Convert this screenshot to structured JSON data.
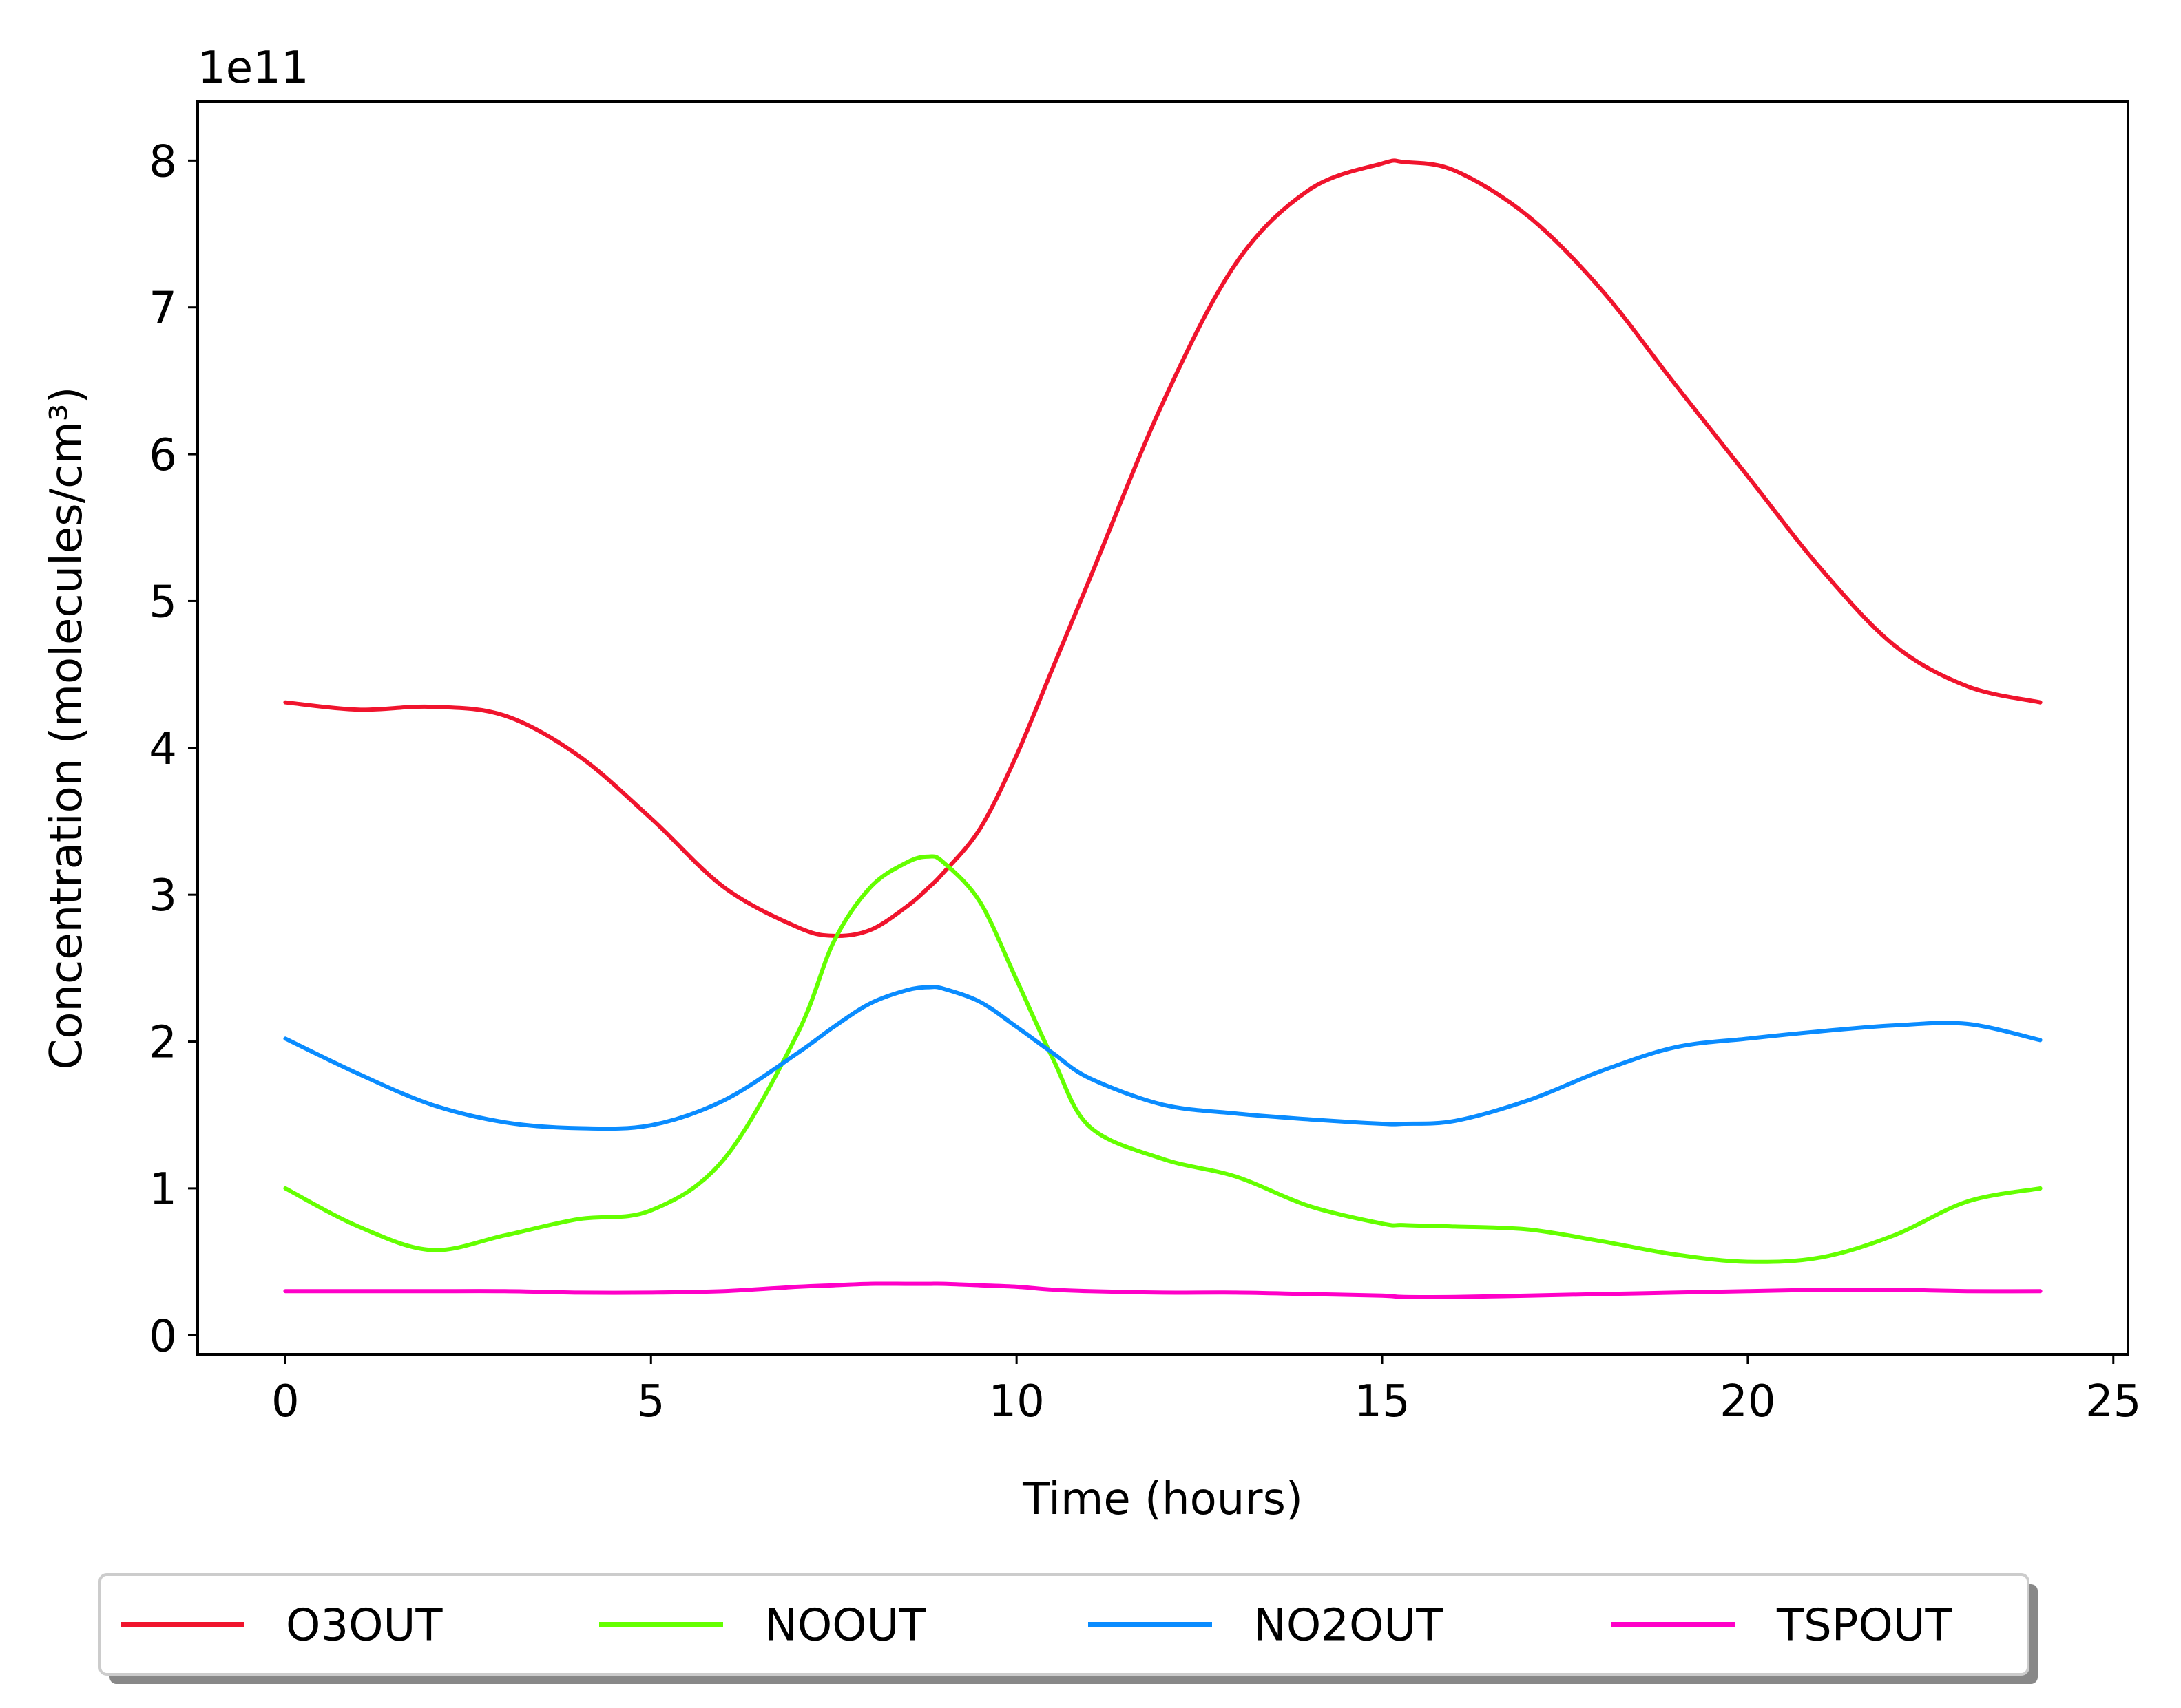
{
  "chart_data": {
    "type": "line",
    "title": "",
    "xlabel": "Time (hours)",
    "ylabel": "Concentration (molecules/cm³)",
    "offset_text": "1e11",
    "xlim": [
      -1.2,
      25.2
    ],
    "ylim": [
      -0.13,
      8.4
    ],
    "x_ticks": [
      0,
      5,
      10,
      15,
      20,
      25
    ],
    "x_tick_labels": [
      "0",
      "5",
      "10",
      "15",
      "20",
      "25"
    ],
    "y_ticks": [
      0,
      1,
      2,
      3,
      4,
      5,
      6,
      7,
      8
    ],
    "y_tick_labels": [
      "0",
      "1",
      "2",
      "3",
      "4",
      "5",
      "6",
      "7",
      "8"
    ],
    "y_scale_factor": 100000000000.0,
    "grid": false,
    "legend_position": "below-center",
    "x": [
      0,
      1,
      2,
      3,
      4,
      5,
      6,
      7,
      7.5,
      8,
      8.5,
      8.8,
      9,
      9.5,
      10,
      10.5,
      11,
      12,
      13,
      14,
      15,
      15.3,
      16,
      17,
      18,
      19,
      20,
      21,
      22,
      23,
      24
    ],
    "series": [
      {
        "name": "O3OUT",
        "color": "#f0142d",
        "values": [
          4.31,
          4.26,
          4.28,
          4.22,
          3.95,
          3.52,
          3.05,
          2.78,
          2.72,
          2.76,
          2.92,
          3.05,
          3.15,
          3.45,
          3.95,
          4.55,
          5.15,
          6.35,
          7.3,
          7.8,
          7.98,
          7.99,
          7.93,
          7.62,
          7.12,
          6.48,
          5.85,
          5.22,
          4.7,
          4.42,
          4.31
        ]
      },
      {
        "name": "NOOUT",
        "color": "#64ff00",
        "values": [
          1.0,
          0.74,
          0.58,
          0.68,
          0.79,
          0.85,
          1.2,
          2.05,
          2.68,
          3.05,
          3.22,
          3.26,
          3.22,
          2.95,
          2.42,
          1.88,
          1.42,
          1.2,
          1.08,
          0.88,
          0.76,
          0.75,
          0.74,
          0.72,
          0.64,
          0.55,
          0.5,
          0.53,
          0.68,
          0.91,
          1.0
        ]
      },
      {
        "name": "NO2OUT",
        "color": "#0a8cff",
        "values": [
          2.02,
          1.78,
          1.57,
          1.45,
          1.41,
          1.43,
          1.6,
          1.92,
          2.1,
          2.26,
          2.35,
          2.37,
          2.36,
          2.27,
          2.1,
          1.92,
          1.75,
          1.57,
          1.51,
          1.47,
          1.44,
          1.44,
          1.46,
          1.6,
          1.8,
          1.96,
          2.02,
          2.07,
          2.11,
          2.12,
          2.01
        ]
      },
      {
        "name": "TSPOUT",
        "color": "#ff00c8",
        "values": [
          0.3,
          0.3,
          0.3,
          0.3,
          0.29,
          0.29,
          0.3,
          0.33,
          0.34,
          0.35,
          0.35,
          0.35,
          0.35,
          0.34,
          0.33,
          0.31,
          0.3,
          0.29,
          0.29,
          0.28,
          0.27,
          0.26,
          0.26,
          0.27,
          0.28,
          0.29,
          0.3,
          0.31,
          0.31,
          0.3,
          0.3
        ]
      }
    ]
  }
}
